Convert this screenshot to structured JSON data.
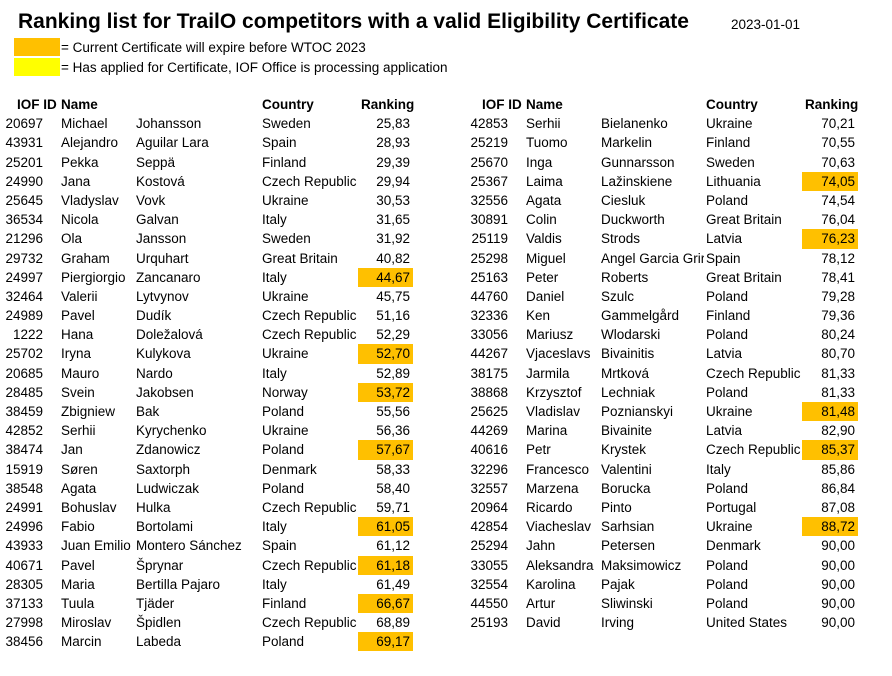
{
  "title": "Ranking list for TrailO competitors with a valid Eligibility Certificate",
  "date": "2023-01-01",
  "legend": [
    {
      "color": "#ffc000",
      "text": "= Current Certificate will expire before WTOC 2023"
    },
    {
      "color": "#ffff00",
      "text": "= Has applied for Certificate, IOF Office is processing application"
    }
  ],
  "headers": {
    "id": "IOF ID",
    "name": "Name",
    "country": "Country",
    "ranking": "Ranking"
  },
  "highlight_color": "#ffc000",
  "left_rows": [
    {
      "id": "20697",
      "first": "Michael",
      "last": "Johansson",
      "country": "Sweden",
      "ranking": "25,83",
      "highlight": false
    },
    {
      "id": "43931",
      "first": "Alejandro",
      "last": "Aguilar Lara",
      "country": "Spain",
      "ranking": "28,93",
      "highlight": false
    },
    {
      "id": "25201",
      "first": "Pekka",
      "last": "Seppä",
      "country": "Finland",
      "ranking": "29,39",
      "highlight": false
    },
    {
      "id": "24990",
      "first": "Jana",
      "last": "Kostová",
      "country": "Czech Republic",
      "ranking": "29,94",
      "highlight": false
    },
    {
      "id": "25645",
      "first": "Vladyslav",
      "last": "Vovk",
      "country": "Ukraine",
      "ranking": "30,53",
      "highlight": false
    },
    {
      "id": "36534",
      "first": "Nicola",
      "last": "Galvan",
      "country": "Italy",
      "ranking": "31,65",
      "highlight": false
    },
    {
      "id": "21296",
      "first": "Ola",
      "last": "Jansson",
      "country": "Sweden",
      "ranking": "31,92",
      "highlight": false
    },
    {
      "id": "29732",
      "first": "Graham",
      "last": "Urquhart",
      "country": "Great Britain",
      "ranking": "40,82",
      "highlight": false
    },
    {
      "id": "24997",
      "first": "Piergiorgio",
      "last": "Zancanaro",
      "country": "Italy",
      "ranking": "44,67",
      "highlight": true
    },
    {
      "id": "32464",
      "first": "Valerii",
      "last": "Lytvynov",
      "country": "Ukraine",
      "ranking": "45,75",
      "highlight": false
    },
    {
      "id": "24989",
      "first": "Pavel",
      "last": "Dudík",
      "country": "Czech Republic",
      "ranking": "51,16",
      "highlight": false
    },
    {
      "id": "1222",
      "first": "Hana",
      "last": "Doležalová",
      "country": "Czech Republic",
      "ranking": "52,29",
      "highlight": false
    },
    {
      "id": "25702",
      "first": "Iryna",
      "last": "Kulykova",
      "country": "Ukraine",
      "ranking": "52,70",
      "highlight": true
    },
    {
      "id": "20685",
      "first": "Mauro",
      "last": "Nardo",
      "country": "Italy",
      "ranking": "52,89",
      "highlight": false
    },
    {
      "id": "28485",
      "first": "Svein",
      "last": "Jakobsen",
      "country": "Norway",
      "ranking": "53,72",
      "highlight": true
    },
    {
      "id": "38459",
      "first": "Zbigniew",
      "last": "Bak",
      "country": "Poland",
      "ranking": "55,56",
      "highlight": false
    },
    {
      "id": "42852",
      "first": "Serhii",
      "last": "Kyrychenko",
      "country": "Ukraine",
      "ranking": "56,36",
      "highlight": false
    },
    {
      "id": "38474",
      "first": "Jan",
      "last": "Zdanowicz",
      "country": "Poland",
      "ranking": "57,67",
      "highlight": true
    },
    {
      "id": "15919",
      "first": "Søren",
      "last": "Saxtorph",
      "country": "Denmark",
      "ranking": "58,33",
      "highlight": false
    },
    {
      "id": "38548",
      "first": "Agata",
      "last": "Ludwiczak",
      "country": "Poland",
      "ranking": "58,40",
      "highlight": false
    },
    {
      "id": "24991",
      "first": "Bohuslav",
      "last": "Hulka",
      "country": "Czech Republic",
      "ranking": "59,71",
      "highlight": false
    },
    {
      "id": "24996",
      "first": "Fabio",
      "last": "Bortolami",
      "country": "Italy",
      "ranking": "61,05",
      "highlight": true
    },
    {
      "id": "43933",
      "first": "Juan Emilio",
      "last": "Montero Sánchez",
      "country": "Spain",
      "ranking": "61,12",
      "highlight": false
    },
    {
      "id": "40671",
      "first": "Pavel",
      "last": "Šprynar",
      "country": "Czech Republic",
      "ranking": "61,18",
      "highlight": true
    },
    {
      "id": "28305",
      "first": "Maria",
      "last": "Bertilla Pajaro",
      "country": "Italy",
      "ranking": "61,49",
      "highlight": false
    },
    {
      "id": "37133",
      "first": "Tuula",
      "last": "Tjäder",
      "country": "Finland",
      "ranking": "66,67",
      "highlight": true
    },
    {
      "id": "27998",
      "first": "Miroslav",
      "last": "Špidlen",
      "country": "Czech Republic",
      "ranking": "68,89",
      "highlight": false
    },
    {
      "id": "38456",
      "first": "Marcin",
      "last": "Labeda",
      "country": "Poland",
      "ranking": "69,17",
      "highlight": true
    }
  ],
  "right_rows": [
    {
      "id": "42853",
      "first": "Serhii",
      "last": "Bielanenko",
      "country": "Ukraine",
      "ranking": "70,21",
      "highlight": false
    },
    {
      "id": "25219",
      "first": "Tuomo",
      "last": "Markelin",
      "country": "Finland",
      "ranking": "70,55",
      "highlight": false
    },
    {
      "id": "25670",
      "first": "Inga",
      "last": "Gunnarsson",
      "country": "Sweden",
      "ranking": "70,63",
      "highlight": false
    },
    {
      "id": "25367",
      "first": "Laima",
      "last": "Lažinskiene",
      "country": "Lithuania",
      "ranking": "74,05",
      "highlight": true
    },
    {
      "id": "32556",
      "first": "Agata",
      "last": "Ciesluk",
      "country": "Poland",
      "ranking": "74,54",
      "highlight": false
    },
    {
      "id": "30891",
      "first": "Colin",
      "last": "Duckworth",
      "country": "Great Britain",
      "ranking": "76,04",
      "highlight": false
    },
    {
      "id": "25119",
      "first": "Valdis",
      "last": "Strods",
      "country": "Latvia",
      "ranking": "76,23",
      "highlight": true
    },
    {
      "id": "25298",
      "first": "Miguel",
      "last": "Angel Garcia Grir",
      "country": "Spain",
      "ranking": "78,12",
      "highlight": false
    },
    {
      "id": "25163",
      "first": "Peter",
      "last": "Roberts",
      "country": "Great Britain",
      "ranking": "78,41",
      "highlight": false
    },
    {
      "id": "44760",
      "first": "Daniel",
      "last": "Szulc",
      "country": "Poland",
      "ranking": "79,28",
      "highlight": false
    },
    {
      "id": "32336",
      "first": "Ken",
      "last": "Gammelgård",
      "country": "Finland",
      "ranking": "79,36",
      "highlight": false
    },
    {
      "id": "33056",
      "first": "Mariusz",
      "last": "Wlodarski",
      "country": "Poland",
      "ranking": "80,24",
      "highlight": false
    },
    {
      "id": "44267",
      "first": "Vjaceslavs",
      "last": "Bivainitis",
      "country": "Latvia",
      "ranking": "80,70",
      "highlight": false
    },
    {
      "id": "38175",
      "first": "Jarmila",
      "last": "Mrtková",
      "country": "Czech Republic",
      "ranking": "81,33",
      "highlight": false
    },
    {
      "id": "38868",
      "first": "Krzysztof",
      "last": "Lechniak",
      "country": "Poland",
      "ranking": "81,33",
      "highlight": false
    },
    {
      "id": "25625",
      "first": "Vladislav",
      "last": "Poznianskyi",
      "country": "Ukraine",
      "ranking": "81,48",
      "highlight": true
    },
    {
      "id": "44269",
      "first": "Marina",
      "last": "Bivainite",
      "country": "Latvia",
      "ranking": "82,90",
      "highlight": false
    },
    {
      "id": "40616",
      "first": "Petr",
      "last": "Krystek",
      "country": "Czech Republic",
      "ranking": "85,37",
      "highlight": true
    },
    {
      "id": "32296",
      "first": "Francesco",
      "last": "Valentini",
      "country": "Italy",
      "ranking": "85,86",
      "highlight": false
    },
    {
      "id": "32557",
      "first": "Marzena",
      "last": "Borucka",
      "country": "Poland",
      "ranking": "86,84",
      "highlight": false
    },
    {
      "id": "20964",
      "first": "Ricardo",
      "last": "Pinto",
      "country": "Portugal",
      "ranking": "87,08",
      "highlight": false
    },
    {
      "id": "42854",
      "first": "Viacheslav",
      "last": "Sarhsian",
      "country": "Ukraine",
      "ranking": "88,72",
      "highlight": true
    },
    {
      "id": "25294",
      "first": "Jahn",
      "last": "Petersen",
      "country": "Denmark",
      "ranking": "90,00",
      "highlight": false
    },
    {
      "id": "33055",
      "first": "Aleksandra",
      "last": "Maksimowicz",
      "country": "Poland",
      "ranking": "90,00",
      "highlight": false
    },
    {
      "id": "32554",
      "first": "Karolina",
      "last": "Pajak",
      "country": "Poland",
      "ranking": "90,00",
      "highlight": false
    },
    {
      "id": "44550",
      "first": "Artur",
      "last": "Sliwinski",
      "country": "Poland",
      "ranking": "90,00",
      "highlight": false
    },
    {
      "id": "25193",
      "first": "David",
      "last": "Irving",
      "country": "United States",
      "ranking": "90,00",
      "highlight": false
    }
  ]
}
